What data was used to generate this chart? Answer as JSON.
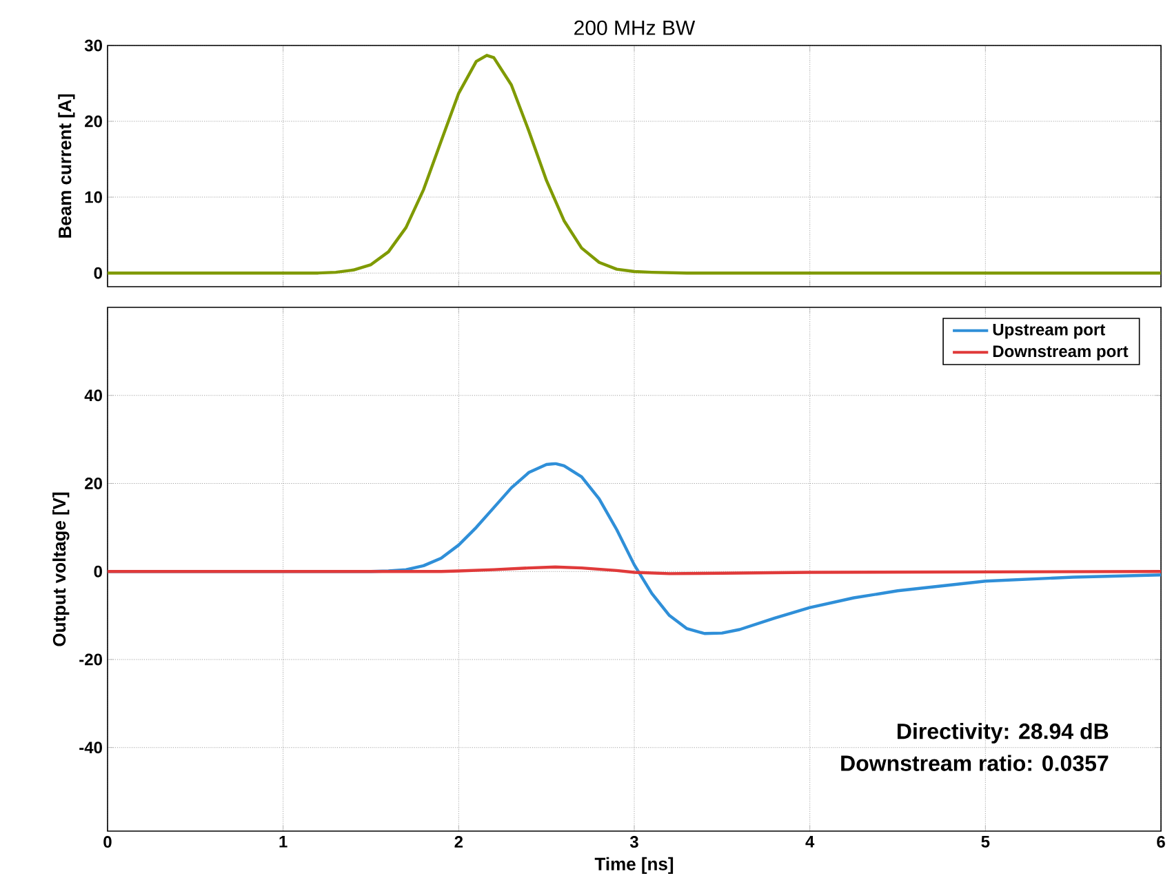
{
  "chart_data": [
    {
      "type": "line",
      "title": "200 MHz BW",
      "ylabel": "Beam current [A]",
      "xlim": [
        0,
        6
      ],
      "xticks": [
        0,
        1,
        2,
        3,
        4,
        5,
        6
      ],
      "ylim": [
        -1.8,
        30
      ],
      "yticks": [
        0,
        10,
        20,
        30
      ],
      "grid": true,
      "tick_labels": "y",
      "x": [
        0,
        1,
        1.2,
        1.3,
        1.4,
        1.5,
        1.6,
        1.7,
        1.8,
        1.9,
        2.0,
        2.1,
        2.16,
        2.2,
        2.3,
        2.4,
        2.5,
        2.6,
        2.7,
        2.8,
        2.9,
        3.0,
        3.1,
        3.3,
        4,
        5,
        6
      ],
      "values": [
        0,
        0,
        0,
        0.1,
        0.4,
        1.1,
        2.8,
        6.0,
        11.0,
        17.4,
        23.7,
        27.9,
        28.7,
        28.4,
        24.8,
        18.7,
        12.2,
        6.9,
        3.3,
        1.4,
        0.5,
        0.2,
        0.1,
        0,
        0,
        0,
        0
      ],
      "color": "#7f9a00"
    },
    {
      "type": "line",
      "xlabel": "Time [ns]",
      "ylabel": "Output voltage [V]",
      "xlim": [
        0,
        6
      ],
      "xticks": [
        0,
        1,
        2,
        3,
        4,
        5,
        6
      ],
      "ylim": [
        -59,
        60
      ],
      "yticks": [
        -40,
        -20,
        0,
        20,
        40
      ],
      "grid": true,
      "legend": "top right",
      "annotations": [
        "Directivity: 28.94 dB",
        "Downstream ratio: 0.0357"
      ],
      "series": [
        {
          "name": "Upstream port",
          "color": "#2f8fd8",
          "x": [
            0,
            1,
            1.5,
            1.6,
            1.7,
            1.8,
            1.9,
            2.0,
            2.1,
            2.2,
            2.3,
            2.4,
            2.5,
            2.55,
            2.6,
            2.7,
            2.8,
            2.9,
            3.0,
            3.1,
            3.2,
            3.3,
            3.4,
            3.5,
            3.6,
            3.8,
            4,
            4.25,
            4.5,
            5,
            5.5,
            6
          ],
          "values": [
            0,
            0,
            0,
            0.1,
            0.4,
            1.3,
            3.0,
            6.0,
            10,
            14.5,
            19,
            22.5,
            24.3,
            24.5,
            24,
            21.5,
            16.5,
            9.5,
            1.5,
            -5,
            -10,
            -13,
            -14.1,
            -14,
            -13.2,
            -10.6,
            -8.2,
            -6,
            -4.4,
            -2.2,
            -1.3,
            -0.8
          ]
        },
        {
          "name": "Downstream port",
          "color": "#e03a3a",
          "x": [
            0,
            1,
            1.9,
            2.0,
            2.2,
            2.4,
            2.55,
            2.7,
            2.9,
            3.0,
            3.2,
            3.5,
            4,
            5,
            6
          ],
          "values": [
            0,
            0,
            0,
            0.1,
            0.4,
            0.8,
            1.0,
            0.8,
            0.2,
            -0.2,
            -0.5,
            -0.4,
            -0.2,
            -0.1,
            0
          ]
        }
      ]
    }
  ]
}
